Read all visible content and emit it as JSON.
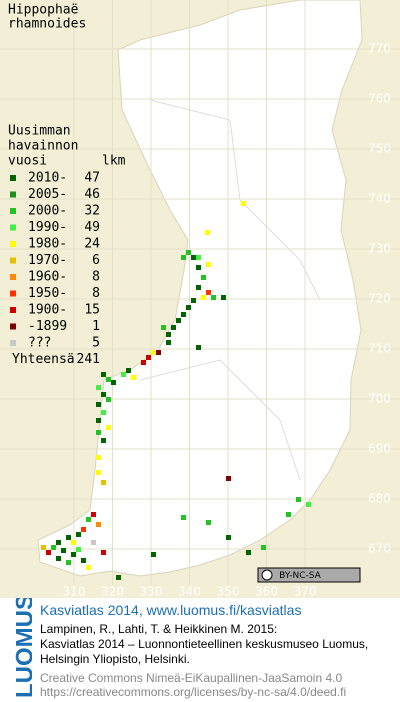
{
  "title": [
    "Hippophaë",
    "rhamnoides"
  ],
  "legend": {
    "header": [
      "Uusimman",
      "havainnon",
      "vuosi"
    ],
    "count_header": "lkm",
    "items": [
      {
        "label": "2010-",
        "count": 47,
        "color": "#006400"
      },
      {
        "label": "2005-",
        "count": 46,
        "color": "#1f8f1f"
      },
      {
        "label": "2000-",
        "count": 32,
        "color": "#22c322"
      },
      {
        "label": "1990-",
        "count": 49,
        "color": "#44ee44"
      },
      {
        "label": "1980-",
        "count": 24,
        "color": "#ffff00"
      },
      {
        "label": "1970-",
        "count": 6,
        "color": "#e0c000"
      },
      {
        "label": "1960-",
        "count": 8,
        "color": "#ff8800"
      },
      {
        "label": "1950-",
        "count": 8,
        "color": "#ff3300"
      },
      {
        "label": "1900-",
        "count": 15,
        "color": "#cc0000"
      },
      {
        "label": "-1899",
        "count": 1,
        "color": "#800000"
      },
      {
        "label": "???",
        "count": 5,
        "color": "#c8c8c8"
      }
    ],
    "total_label": "Yhteensä",
    "total": 241
  },
  "axes": {
    "xticks": [
      310,
      320,
      330,
      340,
      350,
      360,
      370
    ],
    "yticks": [
      670,
      680,
      690,
      700,
      710,
      720,
      730,
      740,
      750,
      760,
      770
    ]
  },
  "license_badge": "BY-NC-SA",
  "logo": "LUOMUS",
  "footer": {
    "title": "Kasviatlas 2014, www.luomus.fi/kasviatlas",
    "citation": [
      "Lampinen, R., Lahti, T. & Heikkinen M. 2015:",
      "Kasviatlas 2014 – Luonnontieteellinen keskusmuseo Luomus,",
      "Helsingin Yliopisto, Helsinki."
    ],
    "license": [
      "Creative Commons Nimeä-EiKaupallinen-JaaSamoin 4.0",
      "https://creativecommons.org/licenses/by-nc-sa/4.0/deed.fi"
    ]
  }
}
